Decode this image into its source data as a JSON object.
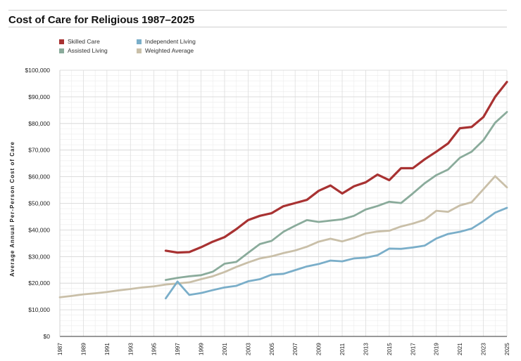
{
  "chart_data": {
    "type": "line",
    "title": "Cost of Care for Religious 1987–2025",
    "ylabel": "Average Annual Per-Person Cost of Care",
    "xlabel": "",
    "xlim": [
      1987,
      2025
    ],
    "ylim": [
      0,
      100000
    ],
    "yticks": [
      0,
      10000,
      20000,
      30000,
      40000,
      50000,
      60000,
      70000,
      80000,
      90000,
      100000
    ],
    "ytick_labels": [
      "$0",
      "$10,000",
      "$20,000",
      "$30,000",
      "$40,000",
      "$50,000",
      "$60,000",
      "$70,000",
      "$80,000",
      "$90,000",
      "$100,000"
    ],
    "xticks": [
      1987,
      1989,
      1991,
      1993,
      1995,
      1997,
      1999,
      2001,
      2003,
      2005,
      2007,
      2009,
      2011,
      2013,
      2015,
      2017,
      2019,
      2021,
      2023,
      2025
    ],
    "xtick_labels": [
      "1987",
      "1989",
      "1991",
      "1993",
      "1995",
      "1997",
      "1999",
      "2001",
      "2003",
      "2005",
      "2007",
      "2009",
      "2011",
      "2013",
      "2015",
      "2017",
      "2019",
      "2021",
      "2023",
      "2025"
    ],
    "grid": true,
    "legend": [
      "Skilled Care",
      "Assisted Living",
      "Independent Living",
      "Weighted Average"
    ],
    "series": [
      {
        "name": "Skilled Care",
        "color": "#a83232",
        "x": [
          1996,
          1997,
          1998,
          1999,
          2000,
          2001,
          2002,
          2003,
          2004,
          2005,
          2006,
          2007,
          2008,
          2009,
          2010,
          2011,
          2012,
          2013,
          2014,
          2015,
          2016,
          2017,
          2018,
          2019,
          2020,
          2021,
          2022,
          2023,
          2024,
          2025
        ],
        "values": [
          32200,
          31500,
          31700,
          33500,
          35600,
          37300,
          40300,
          43700,
          45300,
          46300,
          48900,
          50100,
          51300,
          54700,
          56700,
          53700,
          56400,
          57900,
          60800,
          58700,
          63200,
          63200,
          66500,
          69400,
          72500,
          78200,
          78700,
          82400,
          90000,
          95600
        ]
      },
      {
        "name": "Assisted Living",
        "color": "#8aab9b",
        "x": [
          1996,
          1997,
          1998,
          1999,
          2000,
          2001,
          2002,
          2003,
          2004,
          2005,
          2006,
          2007,
          2008,
          2009,
          2010,
          2011,
          2012,
          2013,
          2014,
          2015,
          2016,
          2017,
          2018,
          2019,
          2020,
          2021,
          2022,
          2023,
          2024,
          2025
        ],
        "values": [
          21200,
          22000,
          22600,
          23000,
          24300,
          27300,
          28000,
          31400,
          34700,
          35900,
          39300,
          41600,
          43700,
          43000,
          43500,
          44000,
          45300,
          47700,
          49000,
          50600,
          50100,
          53700,
          57500,
          60600,
          62700,
          67100,
          69400,
          73700,
          80300,
          84300
        ]
      },
      {
        "name": "Independent Living",
        "color": "#7aaec9",
        "x": [
          1996,
          1997,
          1998,
          1999,
          2000,
          2001,
          2002,
          2003,
          2004,
          2005,
          2006,
          2007,
          2008,
          2009,
          2010,
          2011,
          2012,
          2013,
          2014,
          2015,
          2016,
          2017,
          2018,
          2019,
          2020,
          2021,
          2022,
          2023,
          2024,
          2025
        ],
        "values": [
          14300,
          20600,
          15600,
          16300,
          17400,
          18400,
          19000,
          20700,
          21500,
          23200,
          23500,
          24900,
          26300,
          27200,
          28500,
          28200,
          29300,
          29600,
          30500,
          33000,
          32900,
          33400,
          34100,
          36800,
          38500,
          39300,
          40500,
          43300,
          46500,
          48300
        ]
      },
      {
        "name": "Weighted Average",
        "color": "#c9bfa8",
        "x": [
          1987,
          1988,
          1989,
          1990,
          1991,
          1992,
          1993,
          1994,
          1995,
          1996,
          1997,
          1998,
          1999,
          2000,
          2001,
          2002,
          2003,
          2004,
          2005,
          2006,
          2007,
          2008,
          2009,
          2010,
          2011,
          2012,
          2013,
          2014,
          2015,
          2016,
          2017,
          2018,
          2019,
          2020,
          2021,
          2022,
          2023,
          2024,
          2025
        ],
        "values": [
          14700,
          15200,
          15800,
          16200,
          16700,
          17300,
          17800,
          18400,
          18800,
          19500,
          19900,
          20300,
          21500,
          22600,
          24200,
          26100,
          27800,
          29300,
          30100,
          31300,
          32300,
          33700,
          35600,
          36700,
          35700,
          37000,
          38700,
          39400,
          39700,
          41300,
          42400,
          43800,
          47200,
          46800,
          49200,
          50400,
          55300,
          60200,
          56000
        ]
      }
    ]
  }
}
